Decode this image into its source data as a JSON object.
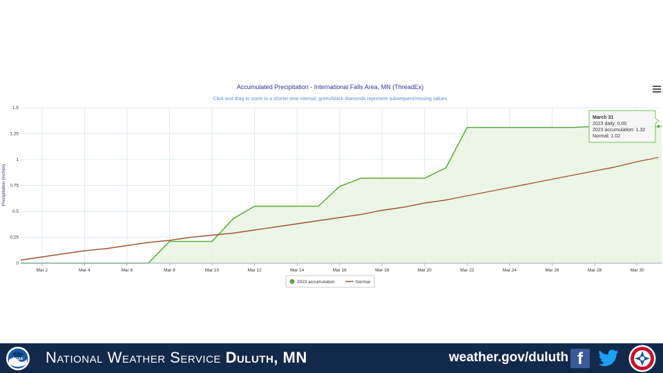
{
  "chart_data": {
    "type": "line",
    "title": "Accumulated Precipitation - International Falls Area, MN (ThreadEx)",
    "subtitle": "Click and drag to zoom to a shorter time interval. green/black diamonds represent subsequent/missing values",
    "ylabel": "Precipitation (inches)",
    "xlabel": "",
    "ylim": [
      0,
      1.5
    ],
    "y_ticks": [
      "0",
      "0.25",
      "0.5",
      "0.75",
      "1",
      "1.25",
      "1.5"
    ],
    "x_ticks": [
      "Mar 2",
      "Mar 4",
      "Mar 6",
      "Mar 8",
      "Mar 10",
      "Mar 12",
      "Mar 14",
      "Mar 16",
      "Mar 18",
      "Mar 20",
      "Mar 22",
      "Mar 24",
      "Mar 26",
      "Mar 28",
      "Mar 30"
    ],
    "x": [
      1,
      2,
      3,
      4,
      5,
      6,
      7,
      8,
      9,
      10,
      11,
      12,
      13,
      14,
      15,
      16,
      17,
      18,
      19,
      20,
      21,
      22,
      23,
      24,
      25,
      26,
      27,
      28,
      29,
      30,
      31
    ],
    "series": [
      {
        "name": "2023 accumulation",
        "color": "#5aaa3a",
        "values": [
          0,
          0,
          0,
          0,
          0,
          0,
          0,
          0.21,
          0.21,
          0.21,
          0.43,
          0.55,
          0.55,
          0.55,
          0.55,
          0.74,
          0.82,
          0.82,
          0.82,
          0.82,
          0.92,
          1.31,
          1.31,
          1.31,
          1.31,
          1.31,
          1.31,
          1.32,
          1.32,
          1.32,
          1.32
        ]
      },
      {
        "name": "Normal",
        "color": "#a0522d",
        "values": [
          0.03,
          0.06,
          0.09,
          0.12,
          0.14,
          0.17,
          0.2,
          0.22,
          0.25,
          0.27,
          0.29,
          0.32,
          0.35,
          0.38,
          0.41,
          0.44,
          0.47,
          0.51,
          0.54,
          0.58,
          0.61,
          0.65,
          0.69,
          0.73,
          0.77,
          0.81,
          0.85,
          0.89,
          0.93,
          0.98,
          1.02
        ]
      }
    ],
    "grid": true,
    "legend_position": "bottom"
  },
  "tooltip": {
    "title": "March 31",
    "line1": "2023 daily: 0.00",
    "line2": "2023 accumulation: 1.32",
    "line3": "Normal: 1.02"
  },
  "footer": {
    "org_first": "National Weather Service",
    "office": "Duluth, MN",
    "url": "weather.gov/duluth",
    "noaa_text": "NOAA",
    "facebook_glyph": "f"
  },
  "colors": {
    "footer_bg": "#13294b",
    "accum_line": "#5aaa3a",
    "accum_fill": "#e8f4e1",
    "normal_line": "#a0522d",
    "grid": "#d8e6f2"
  }
}
